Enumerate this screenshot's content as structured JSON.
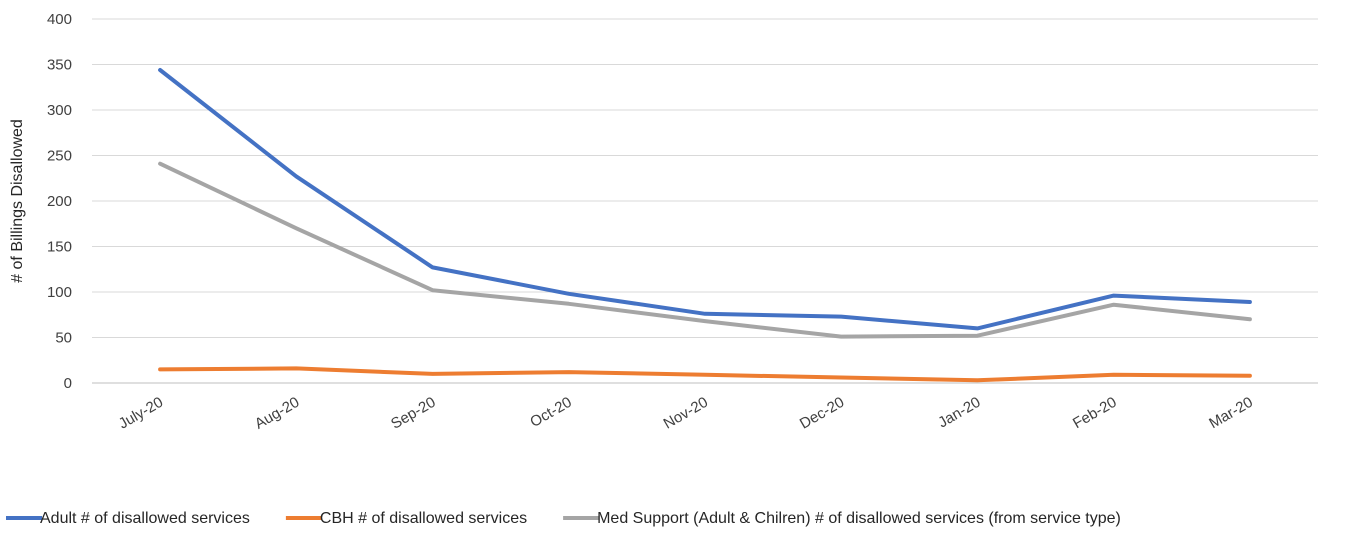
{
  "chart_data": {
    "type": "line",
    "categories": [
      "July-20",
      "Aug-20",
      "Sep-20",
      "Oct-20",
      "Nov-20",
      "Dec-20",
      "Jan-20",
      "Feb-20",
      "Mar-20"
    ],
    "series": [
      {
        "name": "Adult # of disallowed services",
        "color": "#4472C4",
        "values": [
          344,
          227,
          127,
          98,
          76,
          73,
          60,
          96,
          89
        ]
      },
      {
        "name": "CBH # of disallowed services",
        "color": "#ED7D31",
        "values": [
          15,
          16,
          10,
          12,
          9,
          6,
          3,
          9,
          8
        ]
      },
      {
        "name": "Med Support (Adult & Chilren) # of disallowed services (from service type)",
        "color": "#A5A5A5",
        "values": [
          241,
          170,
          102,
          87,
          68,
          51,
          52,
          86,
          70
        ]
      }
    ],
    "title": "",
    "xlabel": "",
    "ylabel": "# of Billings Disallowed",
    "ylim": [
      0,
      400
    ],
    "yticks": [
      0,
      50,
      100,
      150,
      200,
      250,
      300,
      350,
      400
    ],
    "grid": true,
    "legend_position": "bottom"
  }
}
